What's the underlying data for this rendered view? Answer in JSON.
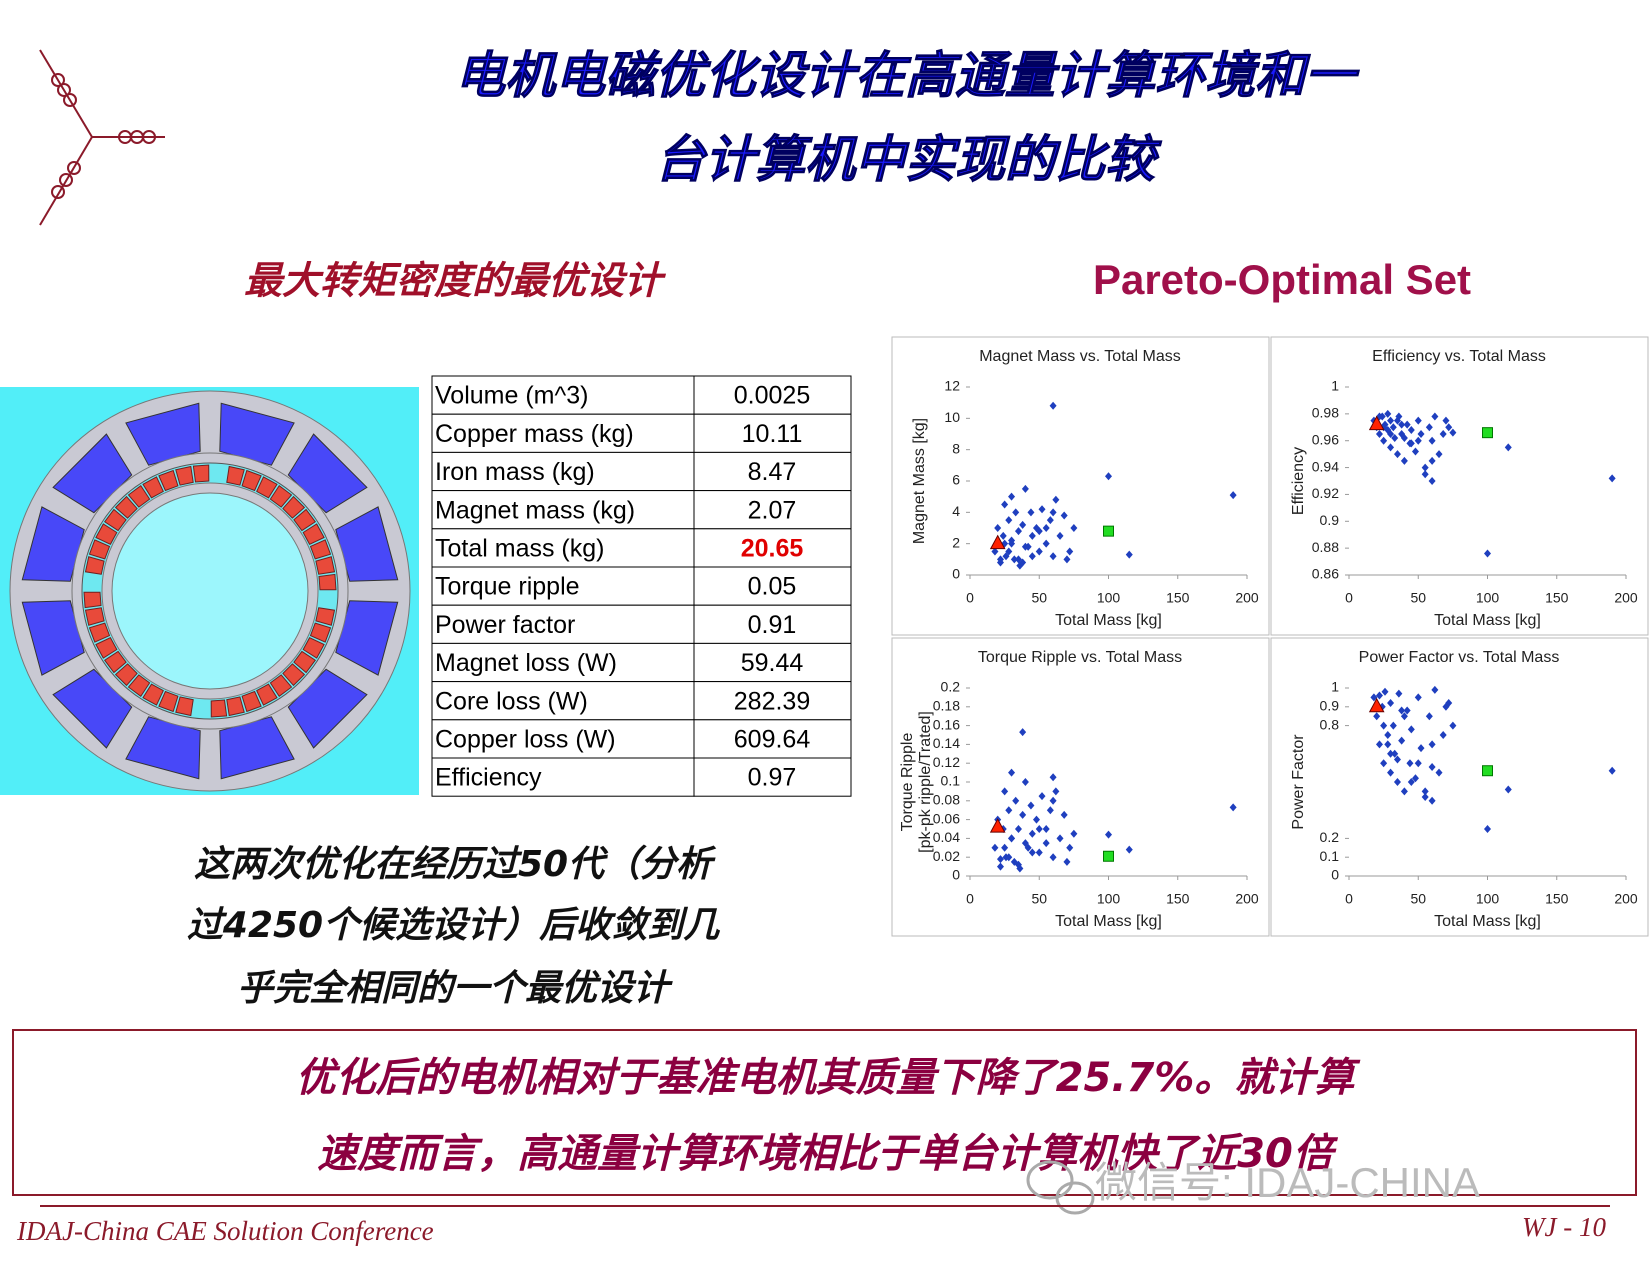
{
  "title": [
    "电机电磁优化设计在高通量计算环境和一",
    "台计算机中实现的比较"
  ],
  "left_heading": "最大转矩密度的最优设计",
  "right_heading": "Pareto-Optimal Set",
  "table": {
    "rows": [
      [
        "Volume (m^3)",
        "0.0025"
      ],
      [
        "Copper mass (kg)",
        "10.11"
      ],
      [
        "Iron mass (kg)",
        "8.47"
      ],
      [
        "Magnet mass (kg)",
        "2.07"
      ],
      [
        "Total mass (kg)",
        "20.65"
      ],
      [
        "Torque ripple",
        "0.05"
      ],
      [
        "Power factor",
        "0.91"
      ],
      [
        "Magnet loss (W)",
        "59.44"
      ],
      [
        "Core loss (W)",
        "282.39"
      ],
      [
        "Copper loss (W)",
        "609.64"
      ],
      [
        "Efficiency",
        "0.97"
      ]
    ],
    "highlight": {
      "row": 4,
      "color": "#e00000"
    }
  },
  "note": [
    "这两次优化在经历过50代（分析",
    "过4250个候选设计）后收敛到几",
    "乎完全相同的一个最优设计"
  ],
  "conclusion": [
    "优化后的电机相对于基准电机其质量下降了25.7%。就计算",
    "速度而言，高通量计算环境相比于单台计算机快了近30倍"
  ],
  "footer": {
    "left": "IDAJ-China CAE Solution Conference",
    "right": "WJ - 10"
  },
  "watermark": "微信号: IDAJ-CHINA",
  "chart_data": [
    {
      "type": "scatter",
      "title": "Magnet Mass vs. Total Mass",
      "xlabel": "Total Mass [kg]",
      "ylabel": "Magnet Mass [kg]",
      "xlim": [
        0,
        200
      ],
      "xticks": [
        0,
        50,
        100,
        150,
        200
      ],
      "ylim": [
        0,
        12
      ],
      "yticks": [
        0,
        2,
        4,
        6,
        8,
        10,
        12
      ],
      "series": [
        {
          "color": "#1f3fbf",
          "marker": "diamond",
          "x": [
            18,
            20,
            22,
            24,
            25,
            26,
            28,
            30,
            30,
            32,
            33,
            35,
            36,
            38,
            40,
            42,
            44,
            45,
            48,
            50,
            52,
            55,
            58,
            60,
            62,
            65,
            68,
            70,
            72,
            75,
            25,
            28,
            35,
            40,
            45,
            55,
            60,
            115,
            100,
            190,
            60,
            30,
            22,
            38,
            50
          ],
          "values": [
            1.5,
            3,
            0.8,
            2.5,
            4.5,
            1.2,
            3.5,
            2,
            5,
            1,
            4,
            2.8,
            0.6,
            3.2,
            5.5,
            1.8,
            4,
            2.5,
            3,
            1.5,
            4.2,
            2,
            3.5,
            1.2,
            4.8,
            2.5,
            3.8,
            1,
            1.5,
            3,
            2,
            1.5,
            1,
            1.8,
            1.2,
            3,
            4,
            1.3,
            6.3,
            5.1,
            10.8,
            2.2,
            1,
            0.8,
            2.8
          ]
        },
        {
          "color": "#ff2200",
          "marker": "triangle",
          "x": [
            20
          ],
          "values": [
            2
          ]
        },
        {
          "color": "#22dd22",
          "marker": "square",
          "x": [
            100
          ],
          "values": [
            2.8
          ]
        }
      ]
    },
    {
      "type": "scatter",
      "title": "Efficiency vs. Total Mass",
      "xlabel": "Total Mass [kg]",
      "ylabel": "Efficiency",
      "xlim": [
        0,
        200
      ],
      "xticks": [
        0,
        50,
        100,
        150,
        200
      ],
      "ylim": [
        0.86,
        1
      ],
      "yticks": [
        0.86,
        0.88,
        0.9,
        0.92,
        0.94,
        0.96,
        0.98,
        1
      ],
      "series": [
        {
          "color": "#1f3fbf",
          "marker": "diamond",
          "x": [
            18,
            20,
            22,
            24,
            25,
            26,
            28,
            30,
            30,
            32,
            33,
            35,
            36,
            38,
            40,
            42,
            44,
            45,
            48,
            50,
            52,
            55,
            58,
            60,
            62,
            65,
            68,
            70,
            72,
            75,
            25,
            28,
            35,
            40,
            45,
            55,
            60,
            115,
            100,
            190,
            60,
            30,
            22,
            38,
            50
          ],
          "values": [
            0.975,
            0.97,
            0.965,
            0.978,
            0.96,
            0.972,
            0.968,
            0.955,
            0.975,
            0.97,
            0.962,
            0.95,
            0.978,
            0.965,
            0.945,
            0.972,
            0.958,
            0.968,
            0.952,
            0.975,
            0.965,
            0.94,
            0.97,
            0.96,
            0.978,
            0.95,
            0.965,
            0.975,
            0.97,
            0.966,
            0.97,
            0.98,
            0.975,
            0.962,
            0.958,
            0.935,
            0.93,
            0.955,
            0.876,
            0.932,
            0.945,
            0.965,
            0.978,
            0.972,
            0.96
          ]
        },
        {
          "color": "#ff2200",
          "marker": "triangle",
          "x": [
            20
          ],
          "values": [
            0.972
          ]
        },
        {
          "color": "#22dd22",
          "marker": "square",
          "x": [
            100
          ],
          "values": [
            0.966
          ]
        }
      ]
    },
    {
      "type": "scatter",
      "title": "Torque Ripple vs. Total Mass",
      "xlabel": "Total Mass [kg]",
      "ylabel": [
        "Torque Ripple",
        "[pk-pk ripple/Trated]"
      ],
      "xlim": [
        0,
        200
      ],
      "xticks": [
        0,
        50,
        100,
        150,
        200
      ],
      "ylim": [
        0,
        0.2
      ],
      "yticks": [
        0,
        0.02,
        0.04,
        0.06,
        0.08,
        0.1,
        0.12,
        0.14,
        0.16,
        0.18,
        0.2
      ],
      "series": [
        {
          "color": "#1f3fbf",
          "marker": "diamond",
          "x": [
            18,
            20,
            22,
            24,
            25,
            26,
            28,
            30,
            30,
            32,
            33,
            35,
            36,
            38,
            40,
            42,
            44,
            45,
            48,
            50,
            52,
            55,
            58,
            60,
            62,
            65,
            68,
            70,
            72,
            75,
            25,
            28,
            35,
            40,
            45,
            55,
            60,
            115,
            100,
            190,
            60,
            30,
            22,
            38,
            50
          ],
          "values": [
            0.03,
            0.06,
            0.01,
            0.05,
            0.09,
            0.02,
            0.07,
            0.04,
            0.11,
            0.015,
            0.08,
            0.05,
            0.008,
            0.065,
            0.1,
            0.03,
            0.075,
            0.045,
            0.06,
            0.025,
            0.085,
            0.035,
            0.07,
            0.02,
            0.09,
            0.04,
            0.065,
            0.015,
            0.03,
            0.045,
            0.03,
            0.02,
            0.012,
            0.035,
            0.025,
            0.05,
            0.08,
            0.028,
            0.044,
            0.073,
            0.105,
            0.04,
            0.018,
            0.153,
            0.05
          ]
        },
        {
          "color": "#ff2200",
          "marker": "triangle",
          "x": [
            20
          ],
          "values": [
            0.052
          ]
        },
        {
          "color": "#22dd22",
          "marker": "square",
          "x": [
            100
          ],
          "values": [
            0.021
          ]
        }
      ]
    },
    {
      "type": "scatter",
      "title": "Power Factor vs. Total Mass",
      "xlabel": "Total Mass [kg]",
      "ylabel": "Power Factor",
      "xlim": [
        0,
        200
      ],
      "xticks": [
        0,
        50,
        100,
        150,
        200
      ],
      "ylim": [
        0,
        1
      ],
      "yticks": [
        0,
        0.1,
        0.2,
        0.8,
        0.9,
        1
      ],
      "series": [
        {
          "color": "#1f3fbf",
          "marker": "diamond",
          "x": [
            18,
            20,
            22,
            24,
            25,
            26,
            28,
            30,
            30,
            32,
            33,
            35,
            36,
            38,
            40,
            42,
            44,
            45,
            48,
            50,
            52,
            55,
            58,
            60,
            62,
            65,
            68,
            70,
            72,
            75,
            25,
            28,
            35,
            40,
            45,
            55,
            60,
            115,
            100,
            190,
            60,
            30,
            22,
            38,
            50
          ],
          "values": [
            0.95,
            0.85,
            0.7,
            0.9,
            0.6,
            0.98,
            0.75,
            0.55,
            0.92,
            0.8,
            0.65,
            0.5,
            0.97,
            0.72,
            0.45,
            0.88,
            0.6,
            0.78,
            0.52,
            0.95,
            0.68,
            0.42,
            0.85,
            0.58,
            0.99,
            0.55,
            0.75,
            0.9,
            0.92,
            0.8,
            0.8,
            0.7,
            0.62,
            0.85,
            0.5,
            0.45,
            0.4,
            0.46,
            0.25,
            0.56,
            0.7,
            0.65,
            0.96,
            0.88,
            0.6
          ]
        },
        {
          "color": "#ff2200",
          "marker": "triangle",
          "x": [
            20
          ],
          "values": [
            0.9
          ]
        },
        {
          "color": "#22dd22",
          "marker": "square",
          "x": [
            100
          ],
          "values": [
            0.56
          ]
        }
      ]
    }
  ]
}
